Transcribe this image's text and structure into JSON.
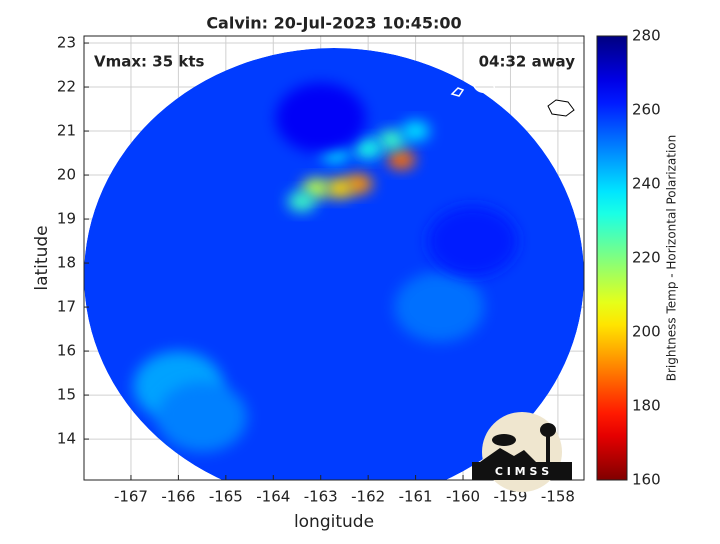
{
  "chart_data": {
    "type": "heatmap",
    "title": "Calvin: 20-Jul-2023 10:45:00",
    "annotations": [
      "Vmax: 35 kts",
      "04:32 away"
    ],
    "x_label": "longitude",
    "y_label": "latitude",
    "xlim": [
      -167.99,
      -157.45
    ],
    "ylim": [
      13.07,
      23.16
    ],
    "xticks": [
      -167,
      -166,
      -165,
      -164,
      -163,
      -162,
      -161,
      -160,
      -159,
      -158
    ],
    "yticks": [
      14,
      15,
      16,
      17,
      18,
      19,
      20,
      21,
      22,
      23
    ],
    "grid": true,
    "background_value": 258,
    "colorbar": {
      "label": "Brightness Temp - Horizontal Polarization",
      "lim": [
        160,
        280
      ],
      "ticks": [
        160,
        180,
        200,
        220,
        240,
        260,
        280
      ]
    },
    "cells": {
      "lon": [
        -162.2,
        -162.6,
        -163.1,
        -163.4,
        -161.3,
        -161.5,
        -161.0,
        -162.0,
        -162.7,
        -163.0,
        -166.0,
        -165.5,
        -160.5,
        -159.8
      ],
      "lat": [
        19.8,
        19.7,
        19.7,
        19.4,
        20.35,
        20.8,
        21.0,
        20.6,
        20.5,
        21.3,
        15.2,
        14.5,
        17.0,
        18.5
      ],
      "values": [
        192,
        200,
        212,
        228,
        188,
        228,
        238,
        232,
        238,
        266,
        246,
        250,
        252,
        262
      ]
    }
  },
  "logo": {
    "text": "C I M S S"
  }
}
